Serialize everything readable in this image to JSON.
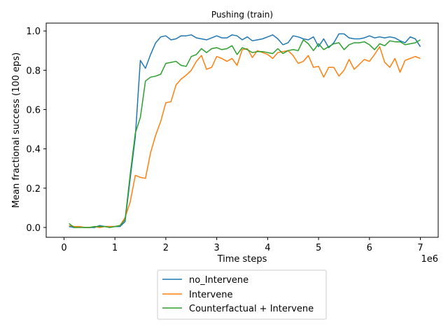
{
  "chart_data": {
    "type": "line",
    "title": "Pushing (train)",
    "xlabel": "Time steps",
    "ylabel": "Mean fractional success (100 eps)",
    "x_offset_label": "1e6",
    "xlim": [
      -0.35,
      7.35
    ],
    "ylim": [
      -0.05,
      1.04
    ],
    "x_ticks": [
      0,
      1,
      2,
      3,
      4,
      5,
      6,
      7
    ],
    "x_tick_labels": [
      "0",
      "1",
      "2",
      "3",
      "4",
      "5",
      "6",
      "7"
    ],
    "y_ticks": [
      0.0,
      0.2,
      0.4,
      0.6,
      0.8,
      1.0
    ],
    "y_tick_labels": [
      "0.0",
      "0.2",
      "0.4",
      "0.6",
      "0.8",
      "1.0"
    ],
    "grid": false,
    "legend_position": "below",
    "x_units": "millions of time steps",
    "x": [
      0.1,
      0.2,
      0.3,
      0.4,
      0.5,
      0.6,
      0.7,
      0.8,
      0.9,
      1.0,
      1.1,
      1.2,
      1.3,
      1.4,
      1.5,
      1.6,
      1.7,
      1.8,
      1.9,
      2.0,
      2.1,
      2.2,
      2.3,
      2.4,
      2.5,
      2.6,
      2.7,
      2.8,
      2.9,
      3.0,
      3.1,
      3.2,
      3.3,
      3.4,
      3.5,
      3.6,
      3.7,
      3.8,
      3.9,
      4.0,
      4.1,
      4.2,
      4.3,
      4.4,
      4.5,
      4.6,
      4.7,
      4.8,
      4.9,
      5.0,
      5.1,
      5.2,
      5.3,
      5.4,
      5.5,
      5.6,
      5.7,
      5.8,
      5.9,
      6.0,
      6.1,
      6.2,
      6.3,
      6.4,
      6.5,
      6.6,
      6.7,
      6.8,
      6.9,
      7.0
    ],
    "series": [
      {
        "name": "no_Intervene",
        "color": "#1f77b4",
        "values": [
          0.005,
          0.0,
          0.005,
          0.0,
          0.0,
          0.0,
          0.01,
          0.005,
          0.005,
          0.005,
          0.005,
          0.03,
          0.25,
          0.46,
          0.85,
          0.81,
          0.88,
          0.94,
          0.97,
          0.975,
          0.955,
          0.96,
          0.975,
          0.975,
          0.98,
          0.965,
          0.96,
          0.955,
          0.965,
          0.975,
          0.965,
          0.965,
          0.98,
          0.975,
          0.955,
          0.97,
          0.95,
          0.955,
          0.96,
          0.97,
          0.98,
          0.96,
          0.93,
          0.94,
          0.975,
          0.97,
          0.96,
          0.955,
          0.97,
          0.92,
          0.96,
          0.915,
          0.94,
          0.985,
          0.985,
          0.965,
          0.96,
          0.96,
          0.965,
          0.975,
          0.965,
          0.97,
          0.965,
          0.97,
          0.965,
          0.95,
          0.94,
          0.97,
          0.96,
          0.92
        ]
      },
      {
        "name": "Intervene",
        "color": "#ff7f0e",
        "values": [
          0.01,
          0.005,
          0.005,
          0.0,
          0.0,
          0.005,
          0.0,
          0.005,
          0.005,
          0.005,
          0.01,
          0.05,
          0.13,
          0.265,
          0.255,
          0.25,
          0.38,
          0.47,
          0.54,
          0.635,
          0.64,
          0.725,
          0.755,
          0.775,
          0.8,
          0.845,
          0.875,
          0.805,
          0.815,
          0.87,
          0.86,
          0.845,
          0.86,
          0.825,
          0.905,
          0.91,
          0.865,
          0.9,
          0.89,
          0.88,
          0.86,
          0.89,
          0.895,
          0.9,
          0.875,
          0.835,
          0.845,
          0.875,
          0.815,
          0.82,
          0.765,
          0.815,
          0.815,
          0.77,
          0.8,
          0.855,
          0.805,
          0.83,
          0.855,
          0.845,
          0.88,
          0.92,
          0.84,
          0.815,
          0.86,
          0.79,
          0.85,
          0.86,
          0.87,
          0.86
        ]
      },
      {
        "name": "Counterfactual + Intervene",
        "color": "#2ca02c",
        "values": [
          0.02,
          0.0,
          0.0,
          0.0,
          0.0,
          0.005,
          0.005,
          0.005,
          0.0,
          0.005,
          0.01,
          0.04,
          0.27,
          0.48,
          0.56,
          0.745,
          0.765,
          0.77,
          0.78,
          0.835,
          0.84,
          0.845,
          0.825,
          0.82,
          0.87,
          0.88,
          0.91,
          0.89,
          0.91,
          0.915,
          0.905,
          0.91,
          0.925,
          0.88,
          0.915,
          0.905,
          0.89,
          0.895,
          0.895,
          0.89,
          0.885,
          0.91,
          0.885,
          0.9,
          0.905,
          0.9,
          0.955,
          0.935,
          0.9,
          0.935,
          0.905,
          0.92,
          0.935,
          0.94,
          0.905,
          0.93,
          0.94,
          0.94,
          0.945,
          0.93,
          0.905,
          0.935,
          0.925,
          0.95,
          0.945,
          0.945,
          0.93,
          0.935,
          0.94,
          0.955
        ]
      }
    ]
  }
}
